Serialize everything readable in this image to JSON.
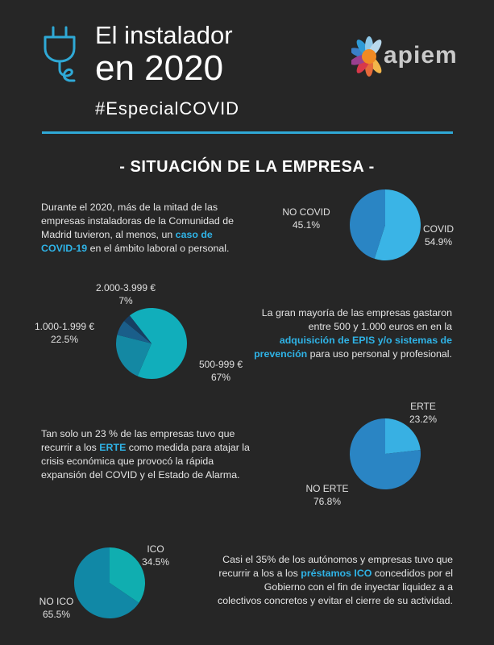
{
  "header": {
    "title_line1": "El instalador",
    "title_line2": "en 2020",
    "hashtag": "#EspecialCOVID",
    "logo_text": "apiem",
    "plug_icon": "plug-icon",
    "accent_color": "#2fa9d6"
  },
  "section_title": "- SITUACIÓN DE LA EMPRESA -",
  "blocks": {
    "covid": {
      "text_before": "Durante el 2020, más de la mitad de las empresas instaladoras de la Comunidad de Madrid tuvieron, al menos, un ",
      "highlight": "caso de COVID-19",
      "text_after": " en el ámbito laboral o personal."
    },
    "epis": {
      "text_before": "La gran mayoría de las empresas gastaron entre 500 y 1.000 euros en en la ",
      "highlight": "adquisición de EPIS y/o sistemas de prevención",
      "text_after": " para uso personal y profesional."
    },
    "erte": {
      "text_before": "Tan solo un 23 % de las empresas tuvo que recurrir a los ",
      "highlight": "ERTE",
      "text_after": " como medida para atajar la crisis económica que provocó la rápida expansión del COVID y el Estado de Alarma."
    },
    "ico": {
      "text_before": "Casi el 35% de los autónomos y empresas tuvo que recurrir a los a los ",
      "highlight": "préstamos ICO",
      "text_after": " concedidos por el Gobierno con el fin de inyectar liquidez a a colectivos concretos y evitar el cierre de su actividad."
    }
  },
  "chart_data": [
    {
      "type": "pie",
      "id": "covid",
      "slices": [
        {
          "label": "COVID",
          "value": 54.9,
          "display": "54.9%",
          "color": "#3ab4e6"
        },
        {
          "label": "NO COVID",
          "value": 45.1,
          "display": "45.1%",
          "color": "#2a85c4"
        }
      ]
    },
    {
      "type": "pie",
      "id": "epis",
      "slices": [
        {
          "label": "500-999 €",
          "value": 67,
          "display": "67%",
          "color": "#11aebb"
        },
        {
          "label": "1.000-1.999 €",
          "value": 22.5,
          "display": "22.5%",
          "color": "#1488a3"
        },
        {
          "label": "2.000-3.999 €",
          "value": 7,
          "display": "7%",
          "color": "#1a5e8a"
        },
        {
          "label": "",
          "value": 3.5,
          "display": "",
          "color": "#163f63"
        }
      ]
    },
    {
      "type": "pie",
      "id": "erte",
      "slices": [
        {
          "label": "ERTE",
          "value": 23.2,
          "display": "23.2%",
          "color": "#38b0e3"
        },
        {
          "label": "NO ERTE",
          "value": 76.8,
          "display": "76.8%",
          "color": "#2a85c4"
        }
      ]
    },
    {
      "type": "pie",
      "id": "ico",
      "slices": [
        {
          "label": "ICO",
          "value": 34.5,
          "display": "34.5%",
          "color": "#10aeb0"
        },
        {
          "label": "NO ICO",
          "value": 65.5,
          "display": "65.5%",
          "color": "#1188a6"
        }
      ]
    }
  ]
}
